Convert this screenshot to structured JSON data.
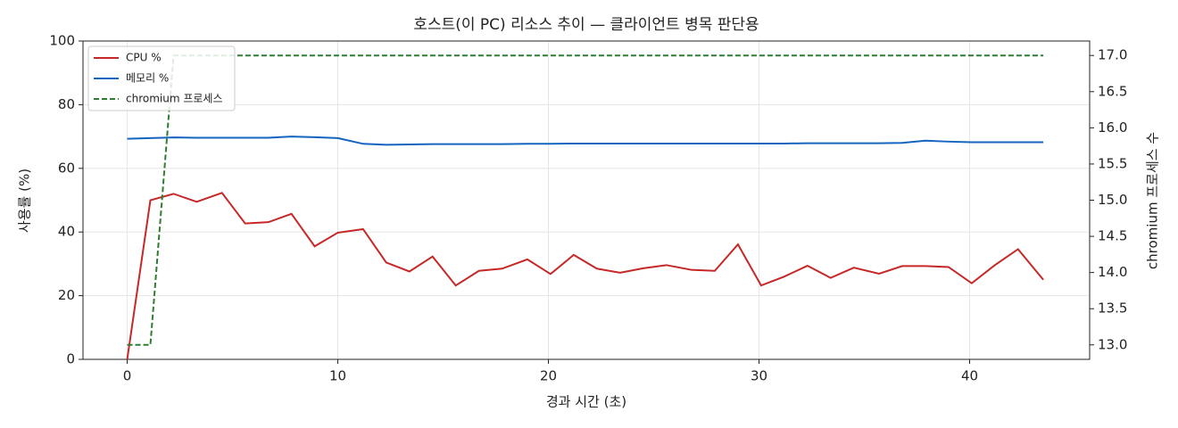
{
  "chart_data": {
    "type": "line",
    "title": "호스트(이 PC) 리소스 추이 — 클라이언트 병목 판단용",
    "xlabel": "경과 시간 (초)",
    "ylabel": "사용률 (%)",
    "y2label": "chromium 프로세스 수",
    "x": [
      0,
      1.1,
      2.2,
      3.3,
      4.5,
      5.6,
      6.7,
      7.8,
      8.9,
      10.0,
      11.2,
      12.3,
      13.4,
      14.5,
      15.6,
      16.7,
      17.8,
      19.0,
      20.1,
      21.2,
      22.3,
      23.4,
      24.5,
      25.6,
      26.8,
      27.9,
      29.0,
      30.1,
      31.2,
      32.3,
      33.4,
      34.5,
      35.7,
      36.8,
      37.9,
      39.0,
      40.1,
      41.2,
      42.3,
      43.5
    ],
    "series": [
      {
        "name": "CPU %",
        "color": "#c62828",
        "values": [
          0,
          50,
          52,
          49.5,
          52.3,
          42.7,
          43.1,
          45.7,
          35.5,
          39.8,
          40.9,
          30.4,
          27.6,
          32.3,
          23.2,
          27.8,
          28.5,
          31.4,
          26.8,
          32.8,
          28.5,
          27.2,
          28.6,
          29.6,
          28.1,
          27.8,
          36.1,
          23.2,
          26,
          29.4,
          25.6,
          28.8,
          26.9,
          29.3,
          29.3,
          29,
          23.9,
          29.6,
          34.6,
          25
        ]
      },
      {
        "name": "메모리 %",
        "color": "#1565c0",
        "values": [
          69.3,
          69.5,
          69.7,
          69.6,
          69.6,
          69.6,
          69.6,
          70,
          69.8,
          69.5,
          67.7,
          67.4,
          67.5,
          67.6,
          67.6,
          67.6,
          67.6,
          67.7,
          67.7,
          67.8,
          67.8,
          67.8,
          67.8,
          67.8,
          67.8,
          67.8,
          67.8,
          67.8,
          67.8,
          67.9,
          67.9,
          67.9,
          67.9,
          68,
          68.7,
          68.4,
          68.2,
          68.2,
          68.2,
          68.2
        ]
      },
      {
        "name": "chromium 프로세스",
        "color": "#2e7d32",
        "dashed": true,
        "axis": "y2",
        "values": [
          13,
          13,
          17,
          17,
          17,
          17,
          17,
          17,
          17,
          17,
          17,
          17,
          17,
          17,
          17,
          17,
          17,
          17,
          17,
          17,
          17,
          17,
          17,
          17,
          17,
          17,
          17,
          17,
          17,
          17,
          17,
          17,
          17,
          17,
          17,
          17,
          17,
          17,
          17,
          17
        ]
      }
    ],
    "xlim": [
      -2.1,
      45.7
    ],
    "xticks": [
      0,
      10,
      20,
      30,
      40
    ],
    "ylim": [
      0,
      100
    ],
    "yticks": [
      0,
      20,
      40,
      60,
      80,
      100
    ],
    "y2lim": [
      12.8,
      17.2
    ],
    "y2ticks": [
      {
        "value": 13,
        "label": "13.0"
      },
      13.5,
      {
        "value": 14,
        "label": "14.0"
      },
      14.5,
      {
        "value": 15,
        "label": "15.0"
      },
      15.5,
      {
        "value": 16,
        "label": "16.0"
      },
      16.5,
      {
        "value": 17,
        "label": "17.0"
      }
    ],
    "grid": true,
    "legend": "upper left"
  }
}
